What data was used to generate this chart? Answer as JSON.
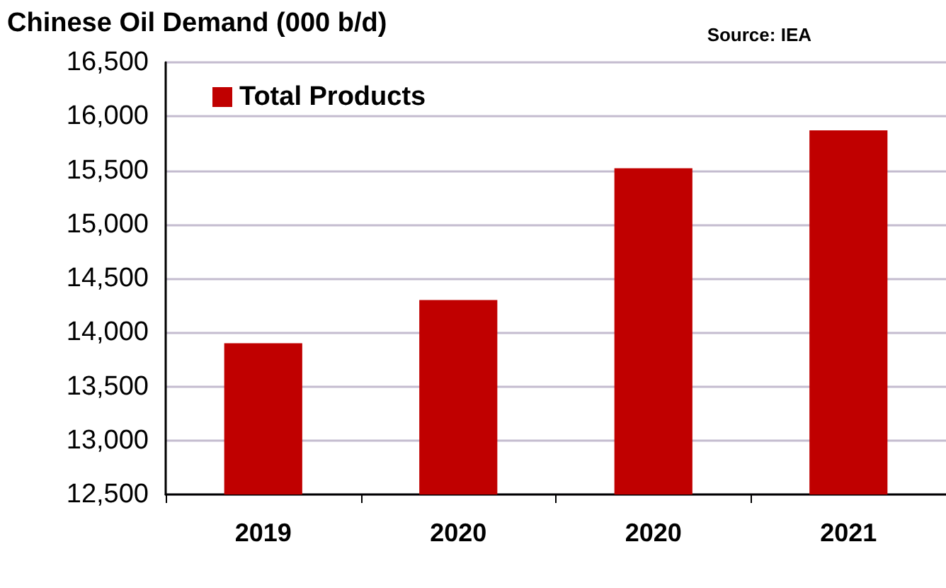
{
  "chart_data": {
    "type": "bar",
    "title": "Chinese Oil Demand (000 b/d)",
    "annotations": [
      "Source: IEA"
    ],
    "categories": [
      "2019",
      "2020",
      "2020",
      "2021"
    ],
    "series": [
      {
        "name": "Total Products",
        "color": "#c00000",
        "values": [
          13900,
          14300,
          15520,
          15870
        ]
      }
    ],
    "ylim": [
      12500,
      16500
    ],
    "yticks": [
      {
        "value": 12500,
        "label": "12,500"
      },
      {
        "value": 13000,
        "label": "13,000"
      },
      {
        "value": 13500,
        "label": "13,500"
      },
      {
        "value": 14000,
        "label": "14,000"
      },
      {
        "value": 14500,
        "label": "14,500"
      },
      {
        "value": 15000,
        "label": "15,000"
      },
      {
        "value": 15500,
        "label": "15,500"
      },
      {
        "value": 16000,
        "label": "16,000"
      },
      {
        "value": 16500,
        "label": "16,500"
      }
    ],
    "grid": "y",
    "legend": "top left"
  }
}
